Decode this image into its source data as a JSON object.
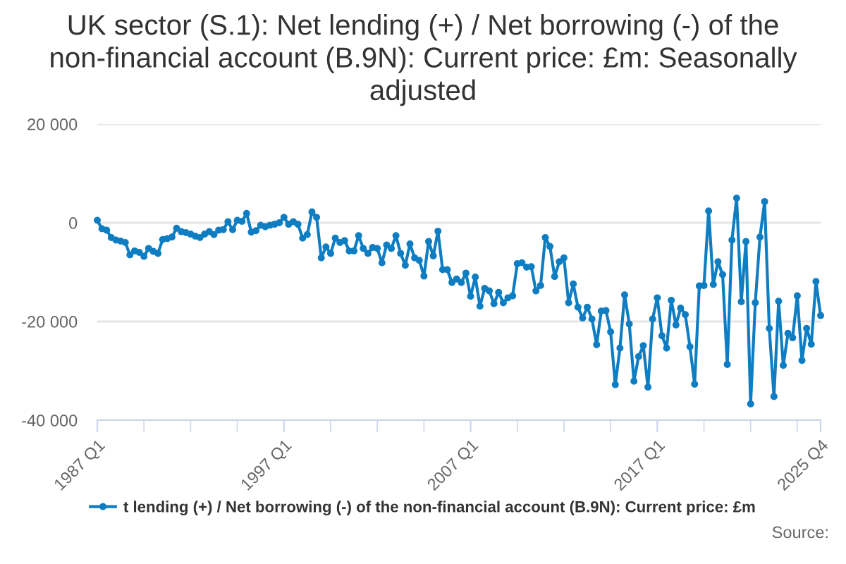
{
  "chart_data": {
    "type": "line",
    "title": "UK sector (S.1): Net lending (+) / Net borrowing (-) of the non-financial account (B.9N): Current price: £m: Seasonally adjusted",
    "categories": [
      "1987 Q1",
      null,
      null,
      null,
      null,
      null,
      null,
      null,
      null,
      null,
      null,
      null,
      null,
      null,
      null,
      null,
      null,
      null,
      null,
      null,
      null,
      null,
      null,
      null,
      null,
      null,
      null,
      null,
      null,
      null,
      null,
      null,
      null,
      null,
      null,
      null,
      null,
      null,
      null,
      null,
      "1997 Q1",
      null,
      null,
      null,
      null,
      null,
      null,
      null,
      null,
      null,
      null,
      null,
      null,
      null,
      null,
      null,
      null,
      null,
      null,
      null,
      null,
      null,
      null,
      null,
      null,
      null,
      null,
      null,
      null,
      null,
      null,
      null,
      null,
      null,
      null,
      null,
      null,
      null,
      null,
      null,
      "2007 Q1",
      null,
      null,
      null,
      null,
      null,
      null,
      null,
      null,
      null,
      null,
      null,
      null,
      null,
      null,
      null,
      null,
      null,
      null,
      null,
      null,
      null,
      null,
      null,
      null,
      null,
      null,
      null,
      null,
      null,
      null,
      null,
      null,
      null,
      null,
      null,
      null,
      null,
      null,
      null,
      "2017 Q1",
      null,
      null,
      null,
      null,
      null,
      null,
      null,
      null,
      null,
      null,
      null,
      null,
      null,
      null,
      null,
      null,
      null,
      null,
      null,
      null,
      null,
      null,
      null,
      null,
      null,
      null,
      null,
      null,
      null,
      null,
      null,
      null,
      null,
      null,
      "2025 Q4"
    ],
    "series": [
      {
        "name": "t lending (+) / Net borrowing (-) of the non-financial account (B.9N): Current price: £m",
        "color": "#0f7dc2",
        "values": [
          500,
          -1200,
          -1500,
          -3000,
          -3500,
          -3700,
          -4000,
          -6500,
          -5700,
          -6000,
          -6800,
          -5200,
          -5800,
          -6200,
          -3400,
          -3200,
          -2900,
          -1100,
          -1800,
          -2000,
          -2300,
          -2700,
          -3000,
          -2300,
          -1800,
          -2400,
          -1500,
          -1400,
          200,
          -1400,
          500,
          300,
          1900,
          -1900,
          -1600,
          -500,
          -800,
          -500,
          -300,
          0,
          1100,
          -300,
          200,
          -300,
          -3100,
          -2400,
          2200,
          1100,
          -7100,
          -4900,
          -6200,
          -3100,
          -4000,
          -3600,
          -5700,
          -5700,
          -2600,
          -5200,
          -6200,
          -5000,
          -5200,
          -8100,
          -4500,
          -5200,
          -2600,
          -6200,
          -8600,
          -4300,
          -7100,
          -7600,
          -10800,
          -3800,
          -6700,
          -1700,
          -9500,
          -9500,
          -12100,
          -11400,
          -12100,
          -10200,
          -14900,
          -11000,
          -16900,
          -13300,
          -13800,
          -16400,
          -14100,
          -16200,
          -15200,
          -14800,
          -8300,
          -8100,
          -9000,
          -8900,
          -13800,
          -12700,
          -3000,
          -4800,
          -10900,
          -7900,
          -7100,
          -16200,
          -12400,
          -17100,
          -19300,
          -17100,
          -19500,
          -24700,
          -17900,
          -17800,
          -22100,
          -32800,
          -25400,
          -14600,
          -20500,
          -32100,
          -27100,
          -24900,
          -33300,
          -19500,
          -15200,
          -22900,
          -25400,
          -15700,
          -20700,
          -17300,
          -18600,
          -25100,
          -32700,
          -12800,
          -12700,
          2400,
          -12500,
          -7900,
          -10500,
          -28700,
          -3500,
          5000,
          -16000,
          -3800,
          -36700,
          -16200,
          -2900,
          4300,
          -21400,
          -35200,
          -15900,
          -28900,
          -22400,
          -23300,
          -14800,
          -27900,
          -21400,
          -24600,
          -11900,
          -18800
        ]
      }
    ],
    "ylim": [
      -40000,
      20000
    ],
    "yticks": [
      {
        "value": -40000,
        "label": "-40 000"
      },
      {
        "value": -20000,
        "label": "-20 000"
      },
      0,
      {
        "value": 20000,
        "label": "20 000"
      }
    ],
    "grid": "y",
    "legend": "bottom",
    "marker": "circle",
    "line_style": "solid",
    "annotations": [
      "Source:"
    ]
  }
}
